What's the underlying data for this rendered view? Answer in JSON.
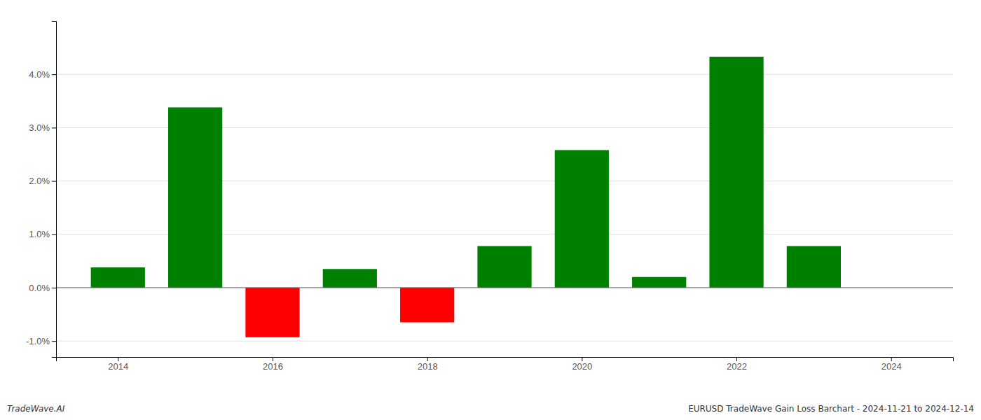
{
  "chart_data": {
    "type": "bar",
    "title": "EURUSD TradeWave Gain Loss Barchart - 2024-11-21 to 2024-12-14",
    "annotations": [
      "TradeWave.AI"
    ],
    "x": [
      2014,
      2015,
      2016,
      2017,
      2018,
      2019,
      2020,
      2021,
      2022,
      2023
    ],
    "values": [
      0.0038,
      0.0338,
      -0.0093,
      0.0035,
      -0.0065,
      0.0078,
      0.0258,
      0.002,
      0.0433,
      0.0078
    ],
    "colors": [
      "#008000",
      "#008000",
      "#ff0000",
      "#008000",
      "#ff0000",
      "#008000",
      "#008000",
      "#008000",
      "#008000",
      "#008000"
    ],
    "xlim": [
      2013.2,
      2024.8
    ],
    "xticks": [
      2014,
      2016,
      2018,
      2020,
      2022,
      2024
    ],
    "ylim": [
      -0.013,
      0.05
    ],
    "yticks": [
      {
        "value": -0.01,
        "label": "-1.0%"
      },
      {
        "value": 0.0,
        "label": "0.0%"
      },
      {
        "value": 0.01,
        "label": "1.0%"
      },
      {
        "value": 0.02,
        "label": "2.0%"
      },
      {
        "value": 0.03,
        "label": "3.0%"
      },
      {
        "value": 0.04,
        "label": "4.0%"
      }
    ],
    "grid": true
  }
}
